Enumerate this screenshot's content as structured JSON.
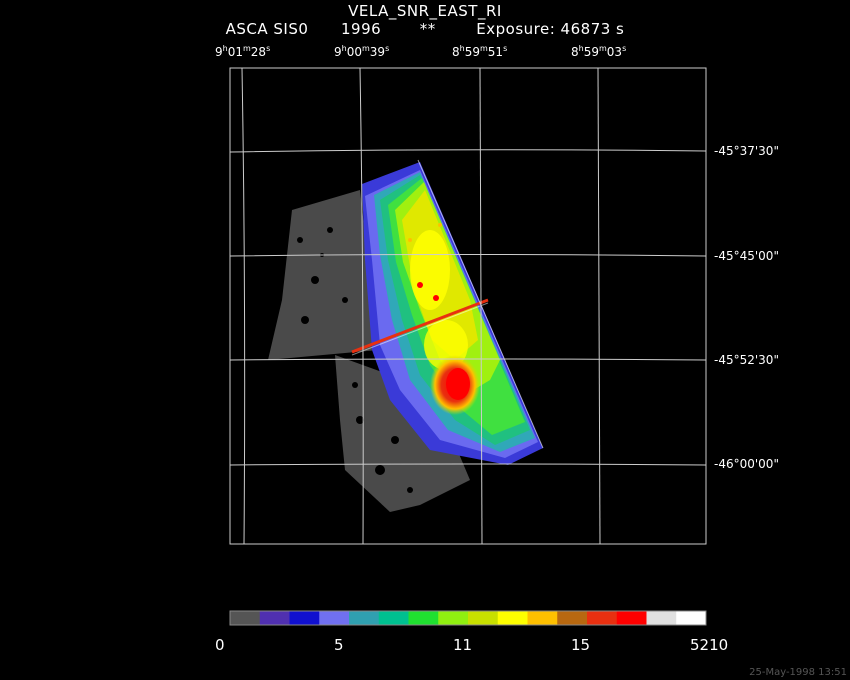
{
  "header": {
    "title": "VELA_SNR_EAST_RI",
    "instrument": "ASCA SIS0",
    "year": "1996",
    "marker": "**",
    "exposure": "Exposure: 46873 s"
  },
  "ra_labels": [
    {
      "h": "9",
      "m": "01",
      "s": "28"
    },
    {
      "h": "9",
      "m": "00",
      "s": "39"
    },
    {
      "h": "8",
      "m": "59",
      "s": "51"
    },
    {
      "h": "8",
      "m": "59",
      "s": "03"
    }
  ],
  "dec_labels": [
    "-45°37'30\"",
    "-45°45'00\"",
    "-45°52'30\"",
    "-46°00'00\""
  ],
  "colorbar": {
    "colors": [
      "#555555",
      "#5030b0",
      "#1010d0",
      "#7070f0",
      "#30a0b0",
      "#00c090",
      "#20e030",
      "#90ef10",
      "#c8e000",
      "#ffff00",
      "#ffc000",
      "#b86810",
      "#e83010",
      "#ff0000",
      "#e0e0e0",
      "#ffffff"
    ],
    "labels": [
      "0",
      "5",
      "11",
      "15",
      "5210"
    ]
  },
  "timestamp": "25-May-1998 13:51"
}
